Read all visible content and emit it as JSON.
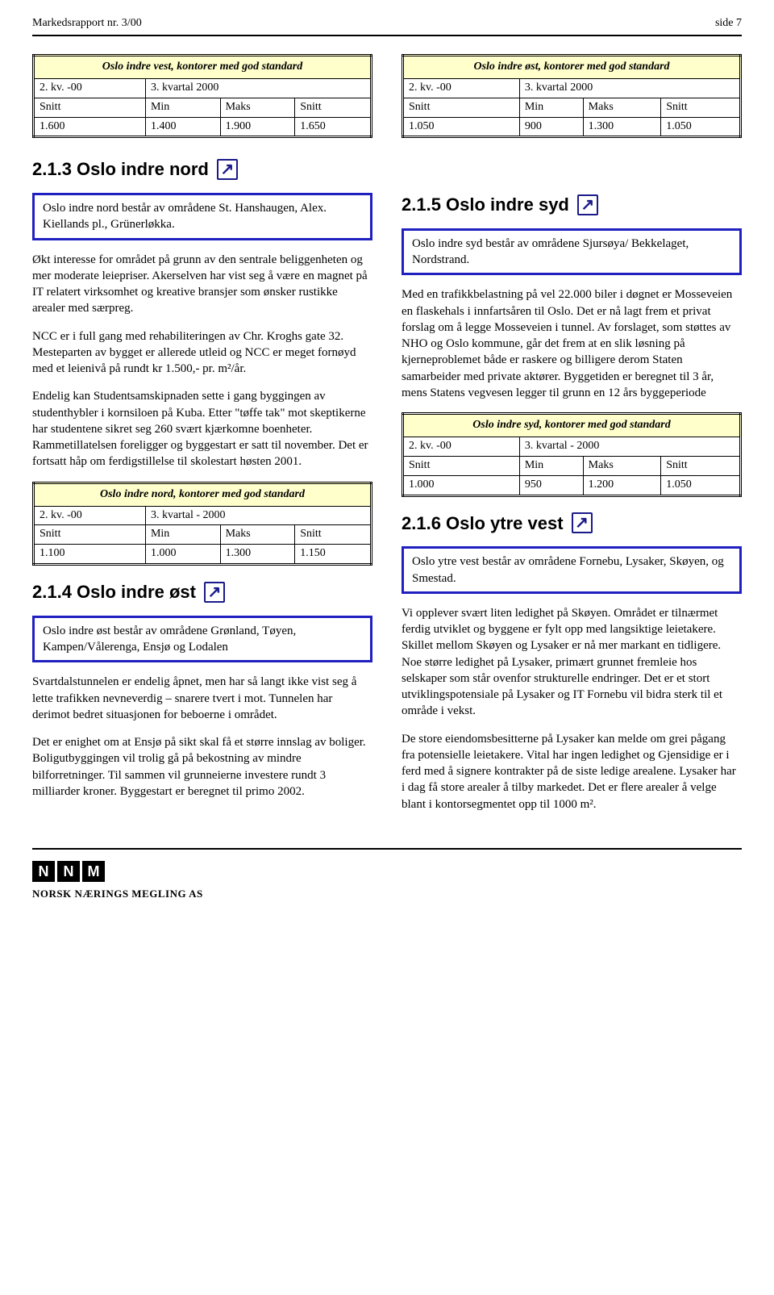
{
  "header": {
    "left": "Markedsrapport nr. 3/00",
    "right": "side 7"
  },
  "table_vest": {
    "title": "Oslo indre vest, kontorer med god standard",
    "period_a": "2. kv. -00",
    "period_b": "3. kvartal 2000",
    "h1": "Snitt",
    "h2": "Min",
    "h3": "Maks",
    "h4": "Snitt",
    "v1": "1.600",
    "v2": "1.400",
    "v3": "1.900",
    "v4": "1.650"
  },
  "table_ost_top": {
    "title": "Oslo indre øst, kontorer med god standard",
    "period_a": "2. kv. -00",
    "period_b": "3. kvartal 2000",
    "h1": "Snitt",
    "h2": "Min",
    "h3": "Maks",
    "h4": "Snitt",
    "v1": "1.050",
    "v2": "900",
    "v3": "1.300",
    "v4": "1.050"
  },
  "sec_213": {
    "num_title": "2.1.3 Oslo indre nord",
    "arrow": "↗"
  },
  "box_nord": "Oslo indre nord består av områdene St. Hanshaugen, Alex. Kiellands pl., Grünerløkka.",
  "para_nord_1": "Økt interesse for området på grunn av den sentrale beliggenheten og mer moderate leiepriser. Akerselven har vist seg å være en magnet på IT relatert virksomhet og kreative bransjer som ønsker rustikke arealer med særpreg.",
  "para_nord_2": "NCC er i full gang med rehabiliteringen av Chr. Kroghs gate 32. Mesteparten av bygget er allerede utleid og NCC er meget fornøyd med et leienivå på rundt kr 1.500,- pr. m²/år.",
  "para_nord_3": "Endelig kan Studentsamskipnaden sette i gang byggingen av studenthybler i kornsiloen på Kuba. Etter \"tøffe tak\" mot skeptikerne har studentene sikret seg 260 svært kjærkomne boenheter. Rammetillatelsen foreligger og byggestart er satt til november. Det er fortsatt håp om ferdigstillelse til skolestart høsten 2001.",
  "table_nord": {
    "title": "Oslo indre nord, kontorer med god standard",
    "period_a": "2. kv. -00",
    "period_b": "3. kvartal - 2000",
    "h1": "Snitt",
    "h2": "Min",
    "h3": "Maks",
    "h4": "Snitt",
    "v1": "1.100",
    "v2": "1.000",
    "v3": "1.300",
    "v4": "1.150"
  },
  "sec_214": {
    "num_title": "2.1.4 Oslo indre øst",
    "arrow": "↗"
  },
  "box_ost": "Oslo indre øst består av områdene Grønland, Tøyen, Kampen/Vålerenga, Ensjø og Lodalen",
  "para_ost_1": "Svartdalstunnelen er endelig åpnet, men har så langt ikke vist seg å lette trafikken nevneverdig – snarere tvert i mot. Tunnelen har derimot bedret situasjonen for beboerne i området.",
  "para_ost_2": "Det er enighet om at Ensjø på sikt skal få et større innslag av boliger. Boligutbyggingen vil trolig gå på bekostning av mindre bilforretninger. Til sammen vil grunneierne investere rundt 3 milliarder kroner. Byggestart er beregnet til primo 2002.",
  "sec_215": {
    "num_title": "2.1.5 Oslo indre syd",
    "arrow": "↗"
  },
  "box_syd": "Oslo indre syd består av områdene Sjursøya/ Bekkelaget, Nordstrand.",
  "para_syd_1": "Med en trafikkbelastning på vel 22.000 biler i døgnet er Mosseveien en flaskehals i innfartsåren til Oslo. Det er nå lagt frem et privat forslag om å legge Mosseveien i tunnel. Av forslaget, som støttes av NHO og Oslo kommune, går det frem at en slik løsning på kjerneproblemet både er raskere og billigere derom Staten samarbeider med private aktører. Byggetiden er beregnet til 3 år, mens Statens vegvesen legger til grunn en 12 års byggeperiode",
  "table_syd": {
    "title": "Oslo indre syd, kontorer med god standard",
    "period_a": "2. kv. -00",
    "period_b": "3. kvartal - 2000",
    "h1": "Snitt",
    "h2": "Min",
    "h3": "Maks",
    "h4": "Snitt",
    "v1": "1.000",
    "v2": "950",
    "v3": "1.200",
    "v4": "1.050"
  },
  "sec_216": {
    "num_title": "2.1.6 Oslo ytre vest",
    "arrow": "↗"
  },
  "box_ytrevest": "Oslo ytre vest består av områdene Fornebu, Lysaker, Skøyen, og Smestad.",
  "para_yv_1": "Vi opplever svært liten ledighet på Skøyen. Området er tilnærmet ferdig utviklet og byggene er fylt opp med langsiktige leietakere. Skillet mellom Skøyen og Lysaker er nå mer markant en tidligere. Noe større ledighet på Lysaker, primært grunnet fremleie hos selskaper som står ovenfor strukturelle endringer. Det er et stort utviklingspotensiale på Lysaker og IT Fornebu vil bidra sterk til et område i vekst.",
  "para_yv_2": "De store eiendomsbesitterne på Lysaker kan melde om grei pågang fra potensielle leietakere. Vital har ingen ledighet og Gjensidige er i ferd med å signere kontrakter på de siste ledige arealene. Lysaker har i dag få store arealer å tilby markedet. Det er flere arealer å velge blant i kontorsegmentet opp til 1000 m².",
  "logo": {
    "n1": "N",
    "n2": "N",
    "m": "M",
    "text": "NORSK NÆRINGS MEGLING AS"
  }
}
